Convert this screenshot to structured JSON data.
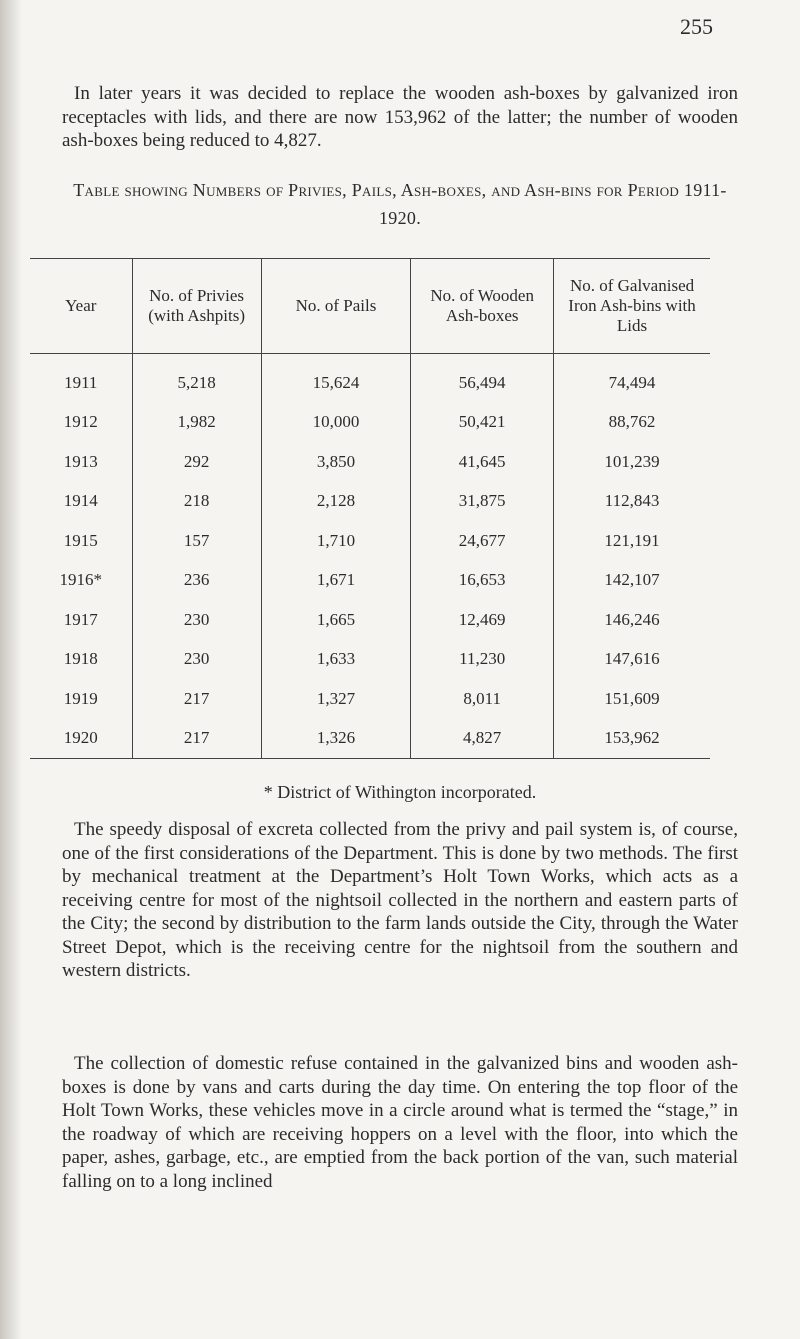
{
  "page_number": "255",
  "paragraphs_top": [
    "In later years it was decided to replace the wooden ash-boxes by galvanized iron receptacles with lids, and there are now 153,962 of the latter; the number of wooden ash-boxes being reduced to 4,827."
  ],
  "table": {
    "title": "Table showing Numbers of Privies, Pails, Ash-boxes, and Ash-bins for Period 1911-1920.",
    "headers": [
      "Year",
      "No. of Privies (with Ashpits)",
      "No. of Pails",
      "No. of Wooden Ash-boxes",
      "No. of Galvanised Iron Ash-bins with Lids"
    ],
    "rows": [
      [
        "1911",
        "5,218",
        "15,624",
        "56,494",
        "74,494"
      ],
      [
        "1912",
        "1,982",
        "10,000",
        "50,421",
        "88,762"
      ],
      [
        "1913",
        "292",
        "3,850",
        "41,645",
        "101,239"
      ],
      [
        "1914",
        "218",
        "2,128",
        "31,875",
        "112,843"
      ],
      [
        "1915",
        "157",
        "1,710",
        "24,677",
        "121,191"
      ],
      [
        "1916*",
        "236",
        "1,671",
        "16,653",
        "142,107"
      ],
      [
        "1917",
        "230",
        "1,665",
        "12,469",
        "146,246"
      ],
      [
        "1918",
        "230",
        "1,633",
        "11,230",
        "147,616"
      ],
      [
        "1919",
        "217",
        "1,327",
        "8,011",
        "151,609"
      ],
      [
        "1920",
        "217",
        "1,326",
        "4,827",
        "153,962"
      ]
    ],
    "footnote": "* District of Withington incorporated."
  },
  "paragraphs_bottom": [
    "The speedy disposal of excreta collected from the privy and pail system is, of course, one of the first considerations of the Department. This is done by two methods. The first by mechanical treatment at the Department’s Holt Town Works, which acts as a receiving centre for most of the nightsoil collected in the northern and eastern parts of the City; the second by distribution to the farm lands outside the City, through the Water Street Depot, which is the receiving centre for the nightsoil from the southern and western districts.",
    "The collection of domestic refuse contained in the galvanized bins and wooden ash-boxes is done by vans and carts during the day time. On entering the top floor of the Holt Town Works, these vehicles move in a circle around what is termed the “stage,” in the roadway of which are receiving hoppers on a level with the floor, into which the paper, ashes, garbage, etc., are emptied from the back portion of the van, such material falling on to a long inclined"
  ]
}
